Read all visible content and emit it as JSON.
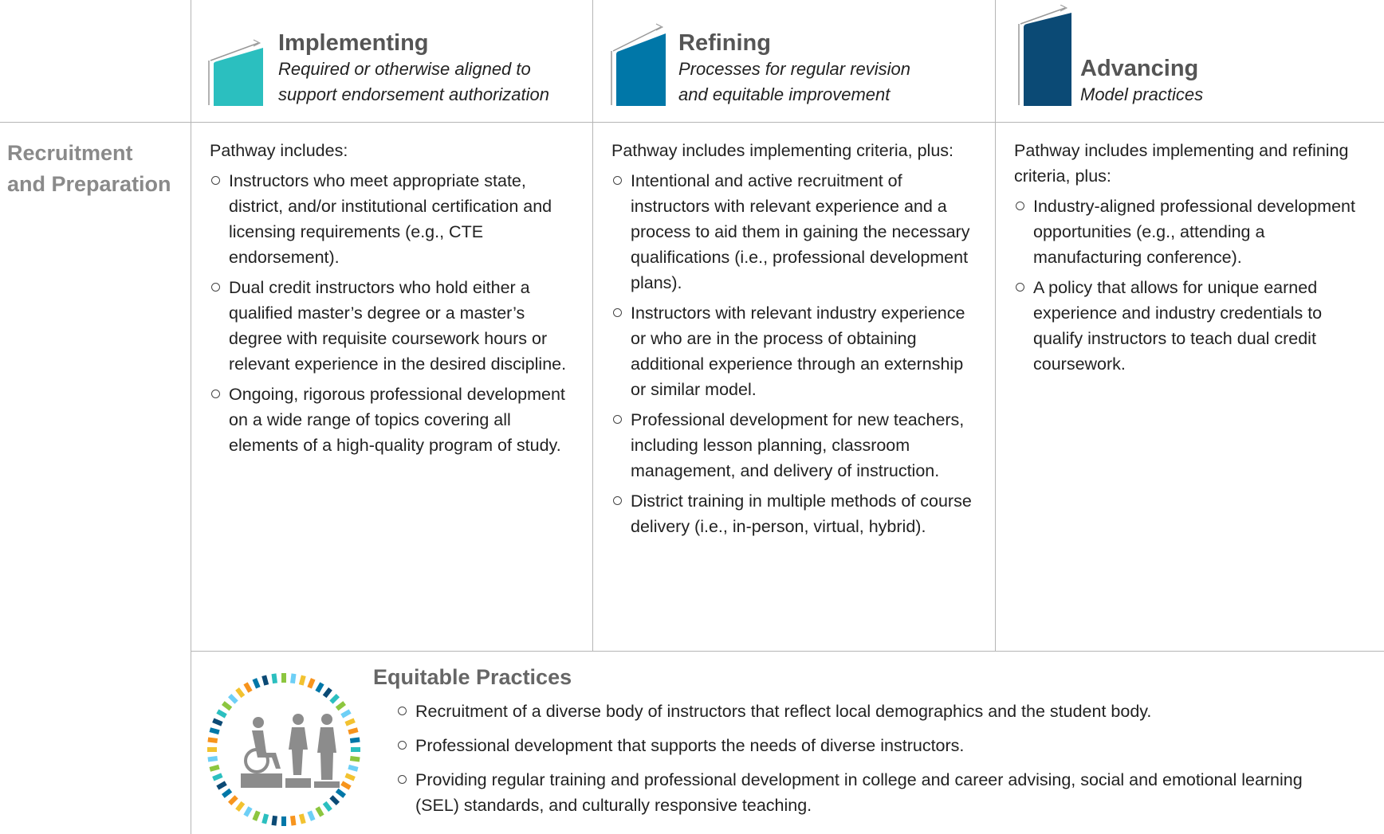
{
  "columns": [
    {
      "title": "Implementing",
      "subtitle": "Required or otherwise aligned to support endorsement authorization"
    },
    {
      "title": "Refining",
      "subtitle": "Processes for regular revision and equitable improvement"
    },
    {
      "title": "Advancing",
      "subtitle": "Model practices"
    }
  ],
  "row_label": [
    "Recruitment",
    "and Preparation"
  ],
  "cells": [
    {
      "intro": "Pathway includes:",
      "items": [
        "Instructors who meet appropriate state, district, and/or institutional certification and licensing requirements (e.g., CTE endorsement).",
        "Dual credit instructors who hold either a qualified master’s degree or a master’s degree with requisite coursework hours or relevant experience in the desired discipline.",
        "Ongoing, rigorous professional development on a wide range of topics covering all elements of a high-quality program of study."
      ]
    },
    {
      "intro": "Pathway includes implementing criteria, plus:",
      "items": [
        "Intentional and active recruitment of instructors with relevant experience and a process to aid them in gaining the necessary qualifications (i.e., professional development plans).",
        "Instructors with relevant industry experience or who are in the process of obtaining additional experience through an externship or similar model.",
        "Professional development for new teachers, including lesson planning, classroom management, and delivery of instruction.",
        "District training in multiple methods of course delivery (i.e., in-person, virtual, hybrid)."
      ]
    },
    {
      "intro": "Pathway includes implementing and refining criteria, plus:",
      "items": [
        "Industry-aligned professional development opportunities (e.g., attending a manufacturing conference).",
        "A policy that allows for unique earned experience and industry credentials to qualify instructors to teach dual credit coursework."
      ]
    }
  ],
  "equitable": {
    "title": "Equitable Practices",
    "items": [
      "Recruitment of a diverse body of instructors that reflect local demographics and the student body.",
      "Professional development that supports the needs of diverse instructors.",
      "Providing regular training and professional development in college and career advising, social and emotional learning (SEL) standards, and culturally responsive teaching."
    ]
  }
}
